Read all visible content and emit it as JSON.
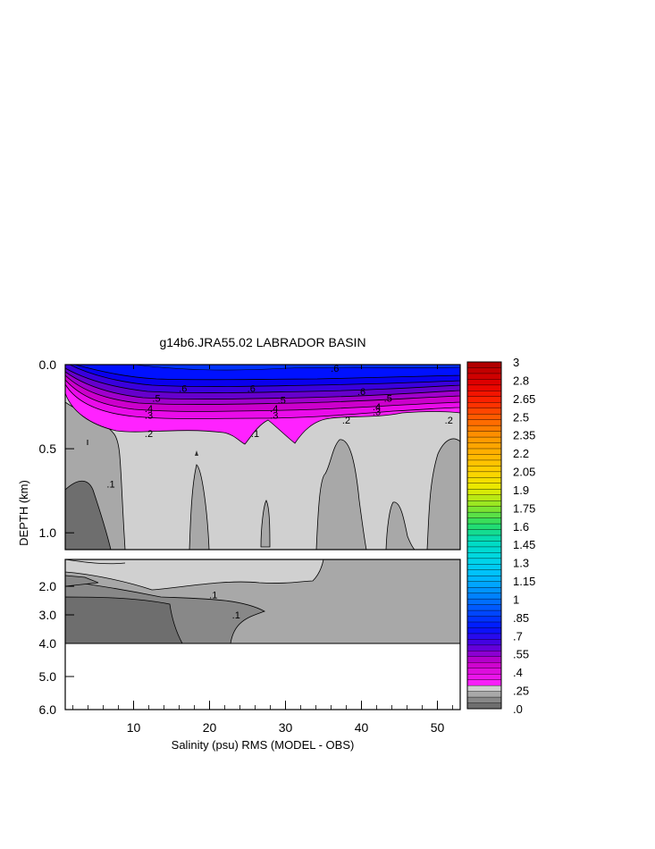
{
  "chart_data": {
    "type": "heatmap",
    "title": "g14b6.JRA55.02 LABRADOR BASIN",
    "xlabel": "Salinity (psu) RMS (MODEL - OBS)",
    "ylabel": "DEPTH (km)",
    "xlim": [
      1,
      53
    ],
    "x_ticks": [
      "10",
      "20",
      "30",
      "40",
      "50"
    ],
    "y_upper_panel": {
      "ylim": [
        0.0,
        1.1
      ],
      "ticks": [
        "0.0",
        "0.5",
        "1.0"
      ]
    },
    "y_lower_panel": {
      "ylim": [
        1.1,
        6.0
      ],
      "ticks": [
        "2.0",
        "3.0",
        "4.0",
        "5.0",
        "6.0"
      ]
    },
    "colorbar": {
      "min": 0.0,
      "max": 3.0,
      "labels": [
        "3",
        "2.8",
        "2.65",
        "2.5",
        "2.35",
        "2.2",
        "2.05",
        "1.9",
        "1.75",
        "1.6",
        "1.45",
        "1.3",
        "1.15",
        "1",
        ".85",
        ".7",
        ".55",
        ".4",
        ".25",
        ".0"
      ]
    },
    "contour_labels_upper": [
      {
        "text": ".6",
        "x": 36.5,
        "y": 0.02
      },
      {
        "text": ".6",
        "x": 16.5,
        "y": 0.14
      },
      {
        "text": ".6",
        "x": 25.5,
        "y": 0.14
      },
      {
        "text": ".6",
        "x": 40.0,
        "y": 0.16
      },
      {
        "text": ".5",
        "x": 13.0,
        "y": 0.2
      },
      {
        "text": ".5",
        "x": 29.5,
        "y": 0.21
      },
      {
        "text": ".5",
        "x": 43.5,
        "y": 0.2
      },
      {
        "text": ".4",
        "x": 12.0,
        "y": 0.26
      },
      {
        "text": ".4",
        "x": 28.5,
        "y": 0.26
      },
      {
        "text": ".4",
        "x": 42.0,
        "y": 0.25
      },
      {
        "text": ".3",
        "x": 12.0,
        "y": 0.3
      },
      {
        "text": ".3",
        "x": 28.5,
        "y": 0.3
      },
      {
        "text": ".3",
        "x": 42.0,
        "y": 0.28
      },
      {
        "text": ".2",
        "x": 12.0,
        "y": 0.41
      },
      {
        "text": ".2",
        "x": 38.0,
        "y": 0.33
      },
      {
        "text": ".2",
        "x": 51.5,
        "y": 0.33
      },
      {
        "text": ".1",
        "x": 7.0,
        "y": 0.71
      },
      {
        "text": ".1",
        "x": 26.0,
        "y": 0.41
      }
    ],
    "contour_labels_lower": [
      {
        "text": ".1",
        "x": 20.5,
        "y": 2.3
      },
      {
        "text": ".1",
        "x": 23.5,
        "y": 3.0
      }
    ]
  }
}
